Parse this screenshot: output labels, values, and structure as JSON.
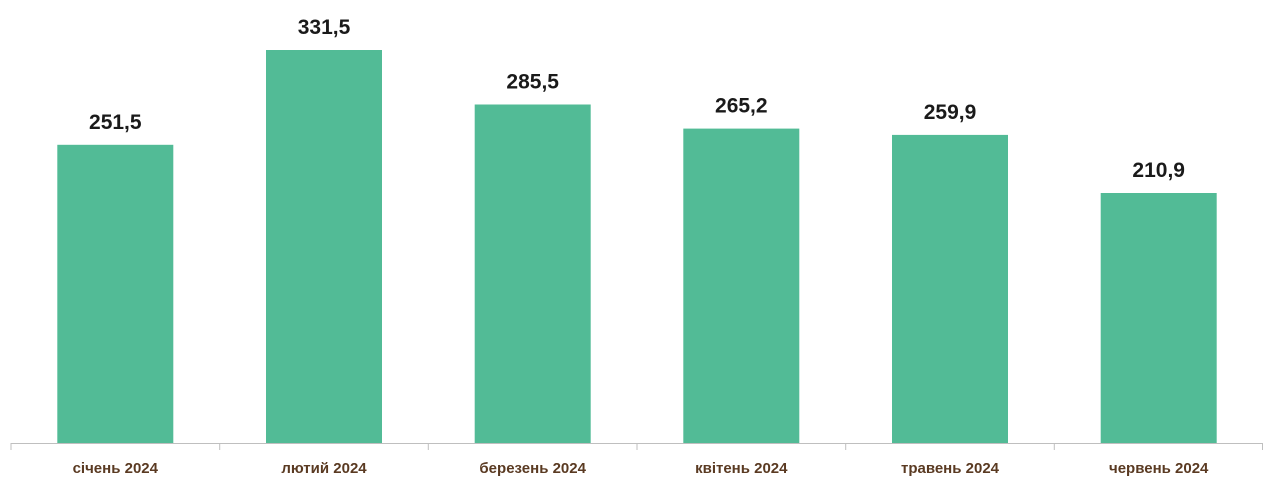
{
  "chart_data": {
    "type": "bar",
    "title": "",
    "xlabel": "",
    "ylabel": "",
    "categories": [
      "січень 2024",
      "лютий 2024",
      "березень 2024",
      "квітень 2024",
      "травень 2024",
      "червень 2024"
    ],
    "values": [
      251.5,
      331.5,
      285.5,
      265.2,
      259.9,
      210.9
    ],
    "value_labels": [
      "251,5",
      "331,5",
      "285,5",
      "265,2",
      "259,9",
      "210,9"
    ],
    "ylim": [
      0,
      345
    ],
    "grid": false,
    "legend": "none",
    "colors": {
      "bar": "#52bb96",
      "axis": "#bfbfbf",
      "category_text": "#5a3a22",
      "value_text": "#1a1a1a"
    }
  }
}
